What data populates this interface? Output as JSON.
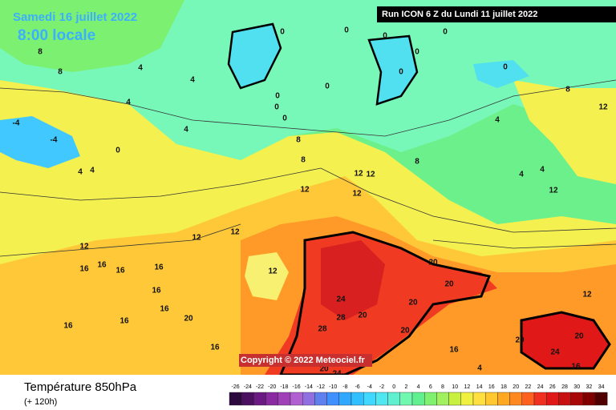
{
  "header": {
    "date": "Samedi 16 juillet 2022",
    "time": "8:00 locale",
    "run": "Run ICON 6 Z du Lundi 11 juillet 2022"
  },
  "copyright": "Copyright © 2022 Meteociel.fr",
  "footer": {
    "title": "Température 850hPa",
    "lead": "(+ 120h)"
  },
  "scale": {
    "labels": [
      -26,
      -24,
      -22,
      -20,
      -18,
      -16,
      -14,
      -12,
      -10,
      -8,
      -6,
      -4,
      -2,
      0,
      2,
      4,
      6,
      8,
      10,
      12,
      14,
      16,
      18,
      20,
      22,
      24,
      26,
      28,
      30,
      32,
      34
    ],
    "colors": [
      "#2d0a3e",
      "#4b1060",
      "#6a1a82",
      "#8a2aa0",
      "#a040b8",
      "#b060d0",
      "#9070e0",
      "#6080f0",
      "#4090ff",
      "#30a8ff",
      "#30c0ff",
      "#40d8ff",
      "#50e8f0",
      "#60f0d0",
      "#70f8b0",
      "#60f090",
      "#80f070",
      "#a0f060",
      "#c8f040",
      "#f0f040",
      "#ffe040",
      "#ffc830",
      "#ffa820",
      "#ff8820",
      "#ff6020",
      "#f03020",
      "#e01818",
      "#c81010",
      "#a80808",
      "#800000",
      "#500000"
    ]
  },
  "map": {
    "contour_labels": [
      8,
      8,
      4,
      4,
      4,
      4,
      4,
      0,
      0,
      0,
      0,
      0,
      0,
      0,
      0,
      0,
      0,
      0,
      -4,
      -4,
      0,
      4,
      4,
      8,
      8,
      8,
      8,
      12,
      12,
      12,
      12,
      12,
      12,
      12,
      12,
      16,
      16,
      16,
      16,
      16,
      16,
      16,
      16,
      16,
      20,
      20,
      20,
      20,
      20,
      20,
      24,
      24,
      28,
      28,
      24,
      20,
      20,
      20,
      16,
      16,
      4,
      4,
      4,
      12,
      12,
      12
    ]
  }
}
